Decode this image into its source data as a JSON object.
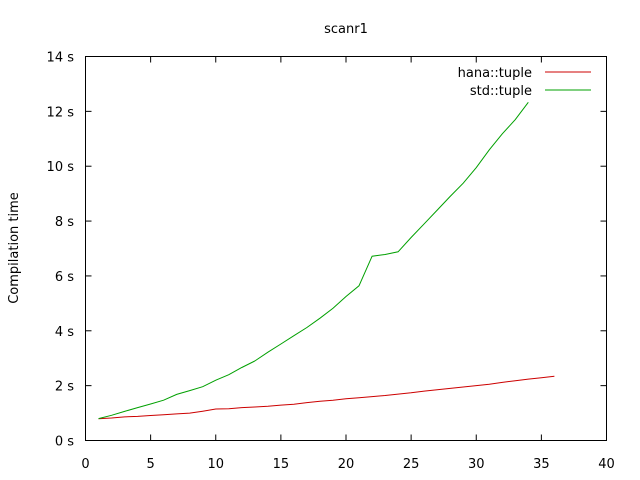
{
  "chart_data": {
    "type": "line",
    "title": "scanr1",
    "xlabel": "",
    "ylabel": "Compilation time",
    "xlim": [
      0,
      40
    ],
    "ylim": [
      0,
      14
    ],
    "x_ticks": [
      0,
      5,
      10,
      15,
      20,
      25,
      30,
      35,
      40
    ],
    "y_ticks": [
      0,
      2,
      4,
      6,
      8,
      10,
      12,
      14
    ],
    "x_tick_labels": [
      "0",
      "5",
      "10",
      "15",
      "20",
      "25",
      "30",
      "35",
      "40"
    ],
    "y_tick_labels": [
      "0 s",
      "2 s",
      "4 s",
      "6 s",
      "8 s",
      "10 s",
      "12 s",
      "14 s"
    ],
    "grid": false,
    "legend_position": "top-right",
    "series": [
      {
        "name": "hana::tuple",
        "color": "#cc0000",
        "x": [
          1,
          2,
          3,
          4,
          5,
          6,
          7,
          8,
          9,
          10,
          11,
          12,
          13,
          14,
          15,
          16,
          17,
          18,
          19,
          20,
          21,
          22,
          23,
          24,
          25,
          26,
          27,
          28,
          29,
          30,
          31,
          32,
          33,
          34,
          35,
          36
        ],
        "y": [
          0.79,
          0.82,
          0.86,
          0.88,
          0.91,
          0.94,
          0.97,
          1.0,
          1.07,
          1.15,
          1.16,
          1.2,
          1.22,
          1.25,
          1.29,
          1.32,
          1.38,
          1.43,
          1.47,
          1.52,
          1.56,
          1.6,
          1.64,
          1.69,
          1.74,
          1.8,
          1.85,
          1.9,
          1.95,
          2.0,
          2.05,
          2.12,
          2.18,
          2.24,
          2.29,
          2.34
        ]
      },
      {
        "name": "std::tuple",
        "color": "#00a000",
        "x": [
          1,
          2,
          3,
          4,
          5,
          6,
          7,
          8,
          9,
          10,
          11,
          12,
          13,
          14,
          15,
          16,
          17,
          18,
          19,
          20,
          21,
          22,
          23,
          24,
          25,
          26,
          27,
          28,
          29,
          30,
          31,
          32,
          33,
          34
        ],
        "y": [
          0.8,
          0.92,
          1.06,
          1.2,
          1.33,
          1.47,
          1.68,
          1.82,
          1.96,
          2.2,
          2.4,
          2.66,
          2.9,
          3.22,
          3.52,
          3.82,
          4.12,
          4.46,
          4.82,
          5.25,
          5.64,
          6.72,
          6.78,
          6.88,
          7.4,
          7.9,
          8.4,
          8.9,
          9.38,
          9.95,
          10.6,
          11.18,
          11.7,
          12.33
        ]
      }
    ]
  }
}
